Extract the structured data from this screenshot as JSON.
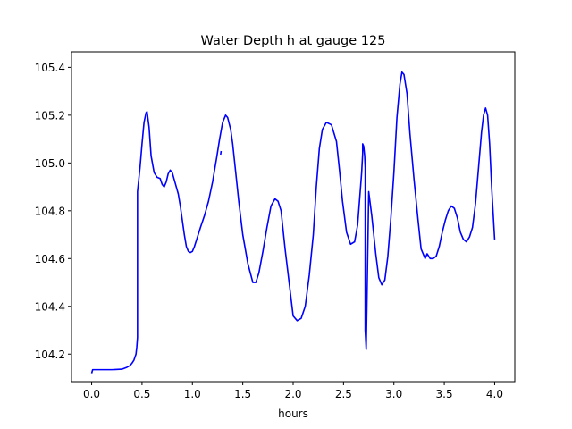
{
  "chart_data": {
    "type": "line",
    "title": "Water Depth h at gauge 125",
    "xlabel": "hours",
    "ylabel": "",
    "xlim": [
      -0.2,
      4.2
    ],
    "ylim": [
      104.085,
      105.465
    ],
    "xticks": [
      0.0,
      0.5,
      1.0,
      1.5,
      2.0,
      2.5,
      3.0,
      3.5,
      4.0
    ],
    "xtick_labels": [
      "0.0",
      "0.5",
      "1.0",
      "1.5",
      "2.0",
      "2.5",
      "3.0",
      "3.5",
      "4.0"
    ],
    "yticks": [
      104.2,
      104.4,
      104.6,
      104.8,
      105.0,
      105.2,
      105.4
    ],
    "ytick_labels": [
      "104.2",
      "104.4",
      "104.6",
      "104.8",
      "105.0",
      "105.2",
      "105.4"
    ],
    "grid": false,
    "legend": "none",
    "series": [
      {
        "color": "#0000ff",
        "x": [
          0.0,
          0.01,
          0.05,
          0.2,
          0.3,
          0.35,
          0.38,
          0.4,
          0.42,
          0.44,
          0.448,
          0.455,
          0.455,
          0.48,
          0.5,
          0.52,
          0.54,
          0.55,
          0.57,
          0.59,
          0.62,
          0.65,
          0.68,
          0.7,
          0.72,
          0.74,
          0.76,
          0.78,
          0.8,
          0.82,
          0.84,
          0.86,
          0.88,
          0.9,
          0.92,
          0.94,
          0.96,
          0.98,
          1.0,
          1.02,
          1.05,
          1.08,
          1.12,
          1.16,
          1.2,
          1.24,
          1.27,
          1.3,
          1.33,
          1.35,
          1.38,
          1.4,
          1.43,
          1.46,
          1.5,
          1.55,
          1.6,
          1.63,
          1.66,
          1.7,
          1.74,
          1.78,
          1.82,
          1.85,
          1.88,
          1.92,
          1.96,
          2.0,
          2.04,
          2.08,
          2.12,
          2.16,
          2.2,
          2.23,
          2.26,
          2.29,
          2.33,
          2.38,
          2.43,
          2.46,
          2.49,
          2.53,
          2.57,
          2.61,
          2.64,
          2.66,
          2.68,
          2.69,
          2.69,
          2.7,
          2.71,
          2.715,
          2.715,
          2.725,
          2.75,
          2.78,
          2.82,
          2.85,
          2.88,
          2.91,
          2.94,
          2.97,
          3.0,
          3.03,
          3.06,
          3.08,
          3.1,
          3.13,
          3.16,
          3.2,
          3.24,
          3.27,
          3.3,
          3.31,
          3.33,
          3.36,
          3.39,
          3.42,
          3.45,
          3.48,
          3.51,
          3.54,
          3.57,
          3.6,
          3.63,
          3.66,
          3.69,
          3.72,
          3.75,
          3.78,
          3.81,
          3.84,
          3.87,
          3.89,
          3.91,
          3.93,
          3.95,
          3.97,
          4.0
        ],
        "y": [
          104.12,
          104.135,
          104.135,
          104.135,
          104.137,
          104.145,
          104.152,
          104.162,
          104.175,
          104.2,
          104.23,
          104.27,
          104.88,
          104.98,
          105.08,
          105.17,
          105.21,
          105.215,
          105.15,
          105.03,
          104.96,
          104.94,
          104.935,
          104.91,
          104.9,
          104.92,
          104.955,
          104.97,
          104.96,
          104.93,
          104.9,
          104.87,
          104.82,
          104.76,
          104.7,
          104.65,
          104.63,
          104.625,
          104.63,
          104.65,
          104.69,
          104.73,
          104.78,
          104.84,
          104.92,
          105.02,
          105.1,
          105.17,
          105.2,
          105.19,
          105.14,
          105.08,
          104.96,
          104.84,
          104.7,
          104.58,
          104.5,
          104.5,
          104.54,
          104.63,
          104.73,
          104.82,
          104.85,
          104.84,
          104.8,
          104.64,
          104.5,
          104.36,
          104.34,
          104.35,
          104.4,
          104.53,
          104.7,
          104.9,
          105.06,
          105.14,
          105.17,
          105.16,
          105.09,
          104.97,
          104.84,
          104.71,
          104.66,
          104.67,
          104.74,
          104.85,
          104.96,
          105.04,
          105.08,
          105.07,
          105.03,
          104.98,
          104.3,
          104.22,
          104.88,
          104.78,
          104.62,
          104.52,
          104.49,
          104.51,
          104.61,
          104.77,
          104.96,
          105.19,
          105.33,
          105.38,
          105.37,
          105.29,
          105.12,
          104.93,
          104.76,
          104.64,
          104.61,
          104.6,
          104.62,
          104.6,
          104.6,
          104.61,
          104.65,
          104.71,
          104.76,
          104.8,
          104.82,
          104.81,
          104.77,
          104.71,
          104.68,
          104.67,
          104.69,
          104.73,
          104.83,
          104.98,
          105.13,
          105.2,
          105.23,
          105.2,
          105.08,
          104.9,
          104.68
        ]
      },
      {
        "color": "#0000ff",
        "x": [
          1.28,
          1.285
        ],
        "y": [
          105.035,
          105.05
        ]
      }
    ]
  }
}
